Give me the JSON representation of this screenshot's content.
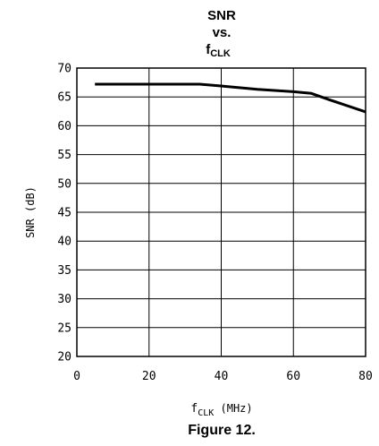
{
  "chart_data": {
    "type": "line",
    "title": {
      "line1": "SNR",
      "line2": "vs.",
      "line3_main": "f",
      "line3_sub": "CLK"
    },
    "xlabel": {
      "main": "f",
      "sub": "CLK",
      "unit": " (MHz)"
    },
    "ylabel": "SNR (dB)",
    "xlim": [
      0,
      80
    ],
    "ylim": [
      20,
      70
    ],
    "xticks": [
      0,
      20,
      40,
      60,
      80
    ],
    "xtick_labels": [
      "0",
      "20",
      "40",
      "60",
      "80"
    ],
    "yticks": [
      20,
      25,
      30,
      35,
      40,
      45,
      50,
      55,
      60,
      65,
      70
    ],
    "ytick_labels": [
      "20",
      "25",
      "30",
      "35",
      "40",
      "45",
      "50",
      "55",
      "60",
      "65",
      "70"
    ],
    "grid": true,
    "series": [
      {
        "x": [
          5,
          10,
          20,
          30,
          34,
          40,
          50,
          60,
          65,
          70,
          80
        ],
        "y": [
          67.2,
          67.2,
          67.2,
          67.2,
          67.2,
          66.9,
          66.3,
          65.9,
          65.6,
          64.5,
          62.4
        ]
      }
    ]
  },
  "caption": "Figure 12."
}
